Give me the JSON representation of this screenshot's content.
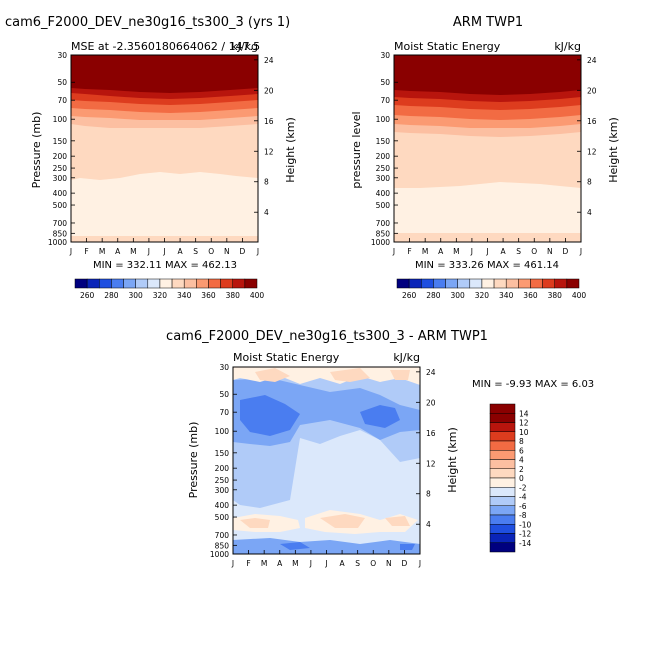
{
  "chart_data": [
    {
      "type": "heatmap",
      "title": "cam6_F2000_DEV_ne30g16_ts300_3 (yrs 1)",
      "subtitle_left": "MSE at -2.3560180664062 / 147.5",
      "subtitle_right": "kJ/kg",
      "ylabel": "Pressure (mb)",
      "y2label": "Height (km)",
      "x_ticks": [
        "J",
        "F",
        "M",
        "A",
        "M",
        "J",
        "J",
        "A",
        "S",
        "O",
        "N",
        "D",
        "J"
      ],
      "y_ticks": [
        "30",
        "50",
        "70",
        "100",
        "150",
        "200",
        "250",
        "300",
        "400",
        "500",
        "700",
        "850",
        "1000"
      ],
      "y2_ticks": [
        "24",
        "20",
        "16",
        "12",
        "8",
        "4"
      ],
      "stats": "MIN = 332.11 MAX = 462.13",
      "colorbar_labels": [
        "260",
        "280",
        "300",
        "320",
        "340",
        "360",
        "380",
        "400"
      ],
      "band_levels": [
        "50",
        "70-100",
        "100-300",
        "300-1000"
      ]
    },
    {
      "type": "heatmap",
      "title": "ARM TWP1",
      "subtitle_left": "Moist Static Energy",
      "subtitle_right": "kJ/kg",
      "ylabel": "pressure level",
      "y2label": "Height (km)",
      "x_ticks": [
        "J",
        "F",
        "M",
        "A",
        "M",
        "J",
        "J",
        "A",
        "S",
        "O",
        "N",
        "D",
        "J"
      ],
      "y_ticks": [
        "30",
        "50",
        "70",
        "100",
        "150",
        "200",
        "250",
        "300",
        "400",
        "500",
        "700",
        "850",
        "1000"
      ],
      "y2_ticks": [
        "24",
        "20",
        "16",
        "12",
        "8",
        "4"
      ],
      "stats": "MIN = 333.26 MAX = 461.14",
      "colorbar_labels": [
        "260",
        "280",
        "300",
        "320",
        "340",
        "360",
        "380",
        "400"
      ]
    },
    {
      "type": "heatmap",
      "title": "cam6_F2000_DEV_ne30g16_ts300_3 - ARM TWP1",
      "subtitle_left": "Moist Static Energy",
      "subtitle_right": "kJ/kg",
      "ylabel": "Pressure (mb)",
      "y2label": "Height (km)",
      "x_ticks": [
        "J",
        "F",
        "M",
        "A",
        "M",
        "J",
        "J",
        "A",
        "S",
        "O",
        "N",
        "D",
        "J"
      ],
      "y_ticks": [
        "30",
        "50",
        "70",
        "100",
        "150",
        "200",
        "250",
        "300",
        "400",
        "500",
        "700",
        "850",
        "1000"
      ],
      "y2_ticks": [
        "24",
        "20",
        "16",
        "12",
        "8",
        "4"
      ],
      "stats": "MIN =   -9.93 MAX =    6.03",
      "colorbar_labels": [
        "14",
        "12",
        "10",
        "8",
        "6",
        "4",
        "2",
        "0",
        "-2",
        "-4",
        "-6",
        "-8",
        "-10",
        "-12",
        "-14"
      ]
    }
  ],
  "colors": {
    "abs_scale": [
      "#00007f",
      "#0a24b8",
      "#1f4fe0",
      "#4a7df0",
      "#7ba6f5",
      "#b0cbf8",
      "#dbe8fb",
      "#fff1e3",
      "#fed9c0",
      "#fcbfa1",
      "#fb9a72",
      "#f26b43",
      "#dd3c1e",
      "#b8150d",
      "#8a0000"
    ],
    "diff_scale": [
      "#8a0000",
      "#b8150d",
      "#dd3c1e",
      "#f26b43",
      "#fb9a72",
      "#fcbfa1",
      "#fed9c0",
      "#fff1e3",
      "#dbe8fb",
      "#b0cbf8",
      "#7ba6f5",
      "#4a7df0",
      "#1f4fe0",
      "#0a24b8",
      "#00007f"
    ]
  }
}
